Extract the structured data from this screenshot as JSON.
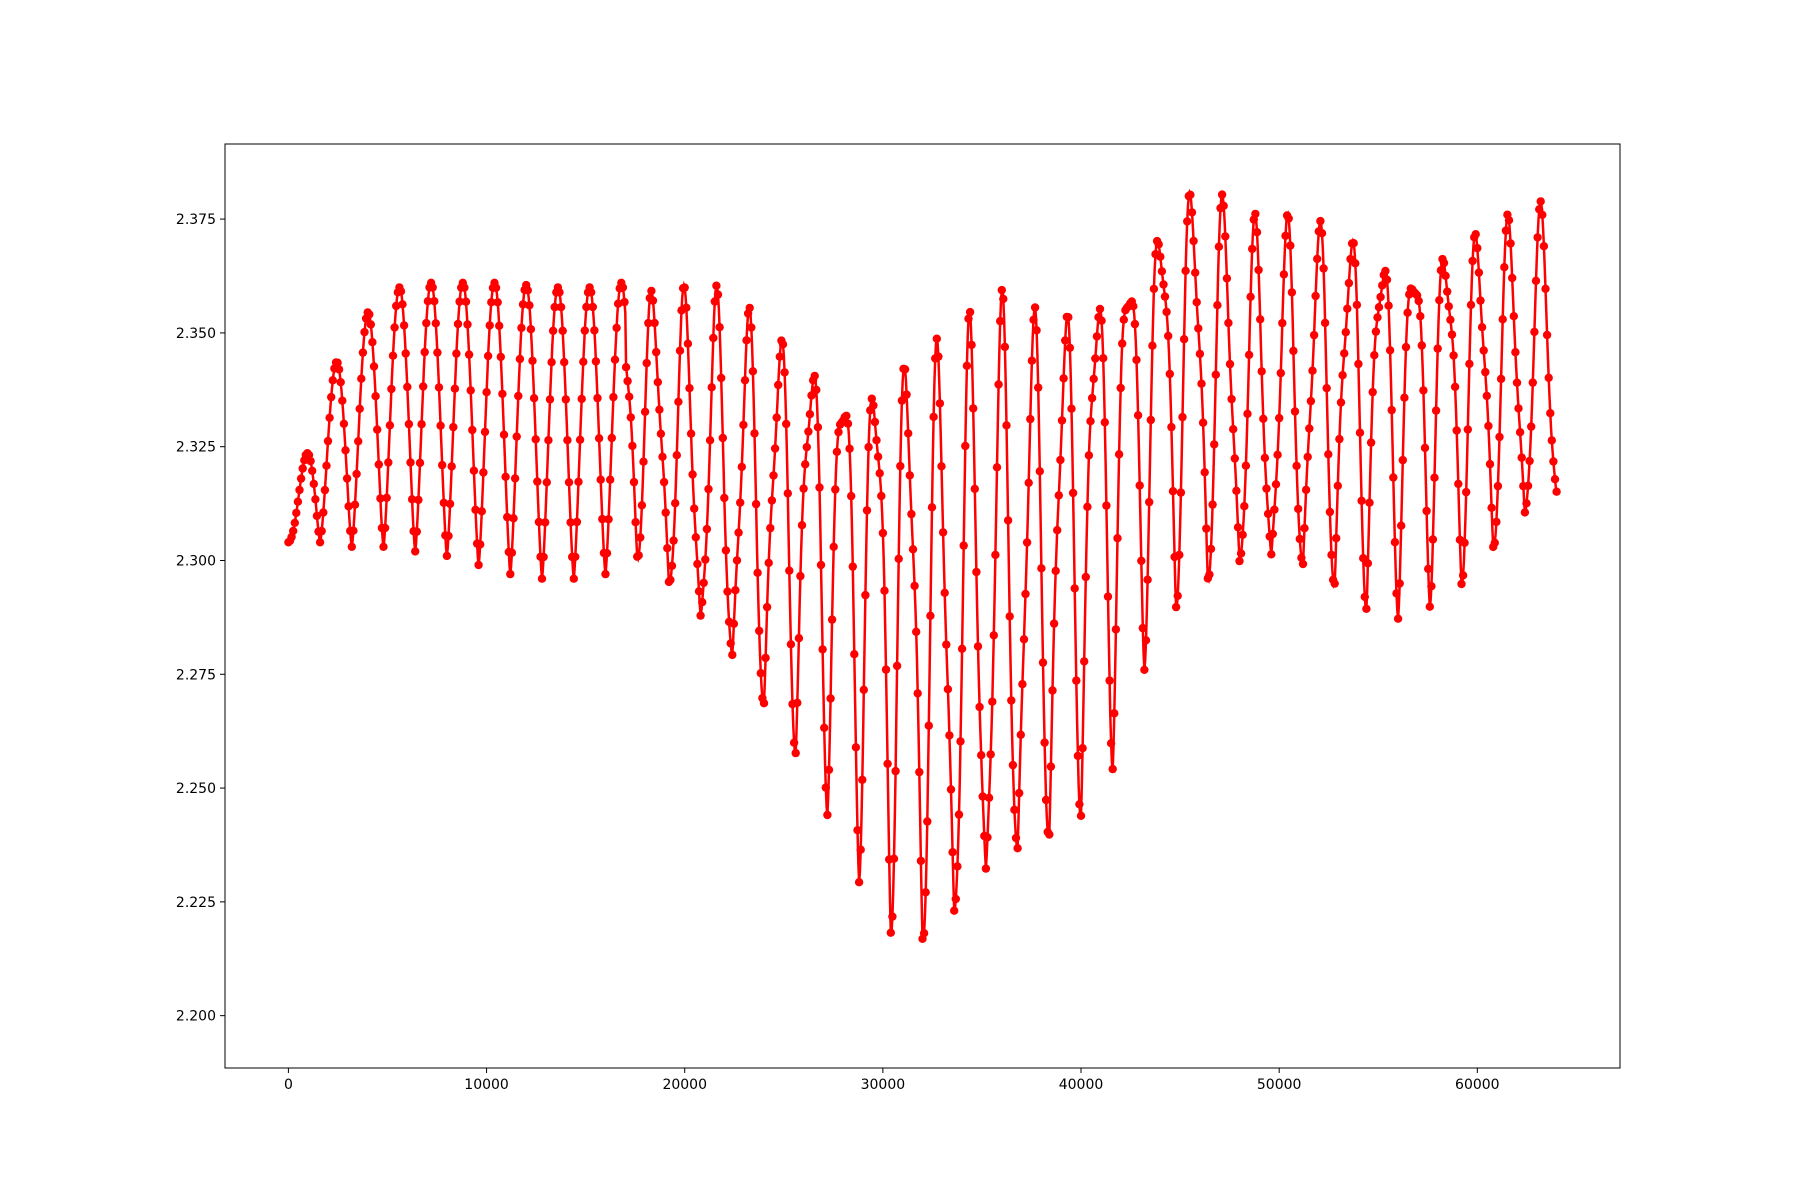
{
  "chart_data": {
    "type": "line",
    "title": "",
    "xlabel": "",
    "ylabel": "",
    "xlim": [
      -3200,
      67200
    ],
    "ylim": [
      2.1885,
      2.3915
    ],
    "xticks": [
      0,
      10000,
      20000,
      30000,
      40000,
      50000,
      60000
    ],
    "xtick_labels": [
      "0",
      "10000",
      "20000",
      "30000",
      "40000",
      "50000",
      "60000"
    ],
    "yticks": [
      2.2,
      2.225,
      2.25,
      2.275,
      2.3,
      2.325,
      2.35,
      2.375
    ],
    "ytick_labels": [
      "2.200",
      "2.225",
      "2.250",
      "2.275",
      "2.300",
      "2.325",
      "2.350",
      "2.375"
    ],
    "grid": false,
    "legend": "none",
    "series": [
      {
        "color": "#ff0000",
        "marker": "circle",
        "oscillation_period": 1600,
        "envelope": {
          "x": [
            0,
            1600,
            3200,
            4800,
            6400,
            8000,
            9600,
            11200,
            12800,
            14400,
            16000,
            17600,
            19200,
            20800,
            22400,
            24000,
            25600,
            27200,
            28800,
            30400,
            32000,
            33200,
            34800,
            36400,
            38000,
            39600,
            41200,
            42800,
            44800,
            46400,
            48000,
            49600,
            51200,
            52800,
            54400,
            56000,
            57600,
            59200,
            60800,
            62400,
            64000
          ],
          "upper": [
            2.307,
            2.337,
            2.35,
            2.359,
            2.361,
            2.361,
            2.361,
            2.361,
            2.36,
            2.36,
            2.36,
            2.362,
            2.361,
            2.361,
            2.36,
            2.355,
            2.353,
            2.351,
            2.352,
            2.352,
            2.354,
            2.352,
            2.357,
            2.361,
            2.358,
            2.363,
            2.371,
            2.377,
            2.387,
            2.387,
            2.377,
            2.376,
            2.377,
            2.377,
            2.376,
            2.374,
            2.375,
            2.376,
            2.377,
            2.378,
            2.38
          ],
          "lower": [
            2.304,
            2.304,
            2.303,
            2.303,
            2.302,
            2.301,
            2.299,
            2.297,
            2.296,
            2.296,
            2.297,
            2.295,
            2.284,
            2.272,
            2.263,
            2.257,
            2.252,
            2.243,
            2.229,
            2.213,
            2.202,
            2.198,
            2.203,
            2.21,
            2.222,
            2.235,
            2.247,
            2.273,
            2.285,
            2.285,
            2.285,
            2.285,
            2.285,
            2.286,
            2.286,
            2.287,
            2.289,
            2.29,
            2.293,
            2.297,
            2.301
          ]
        }
      }
    ]
  }
}
